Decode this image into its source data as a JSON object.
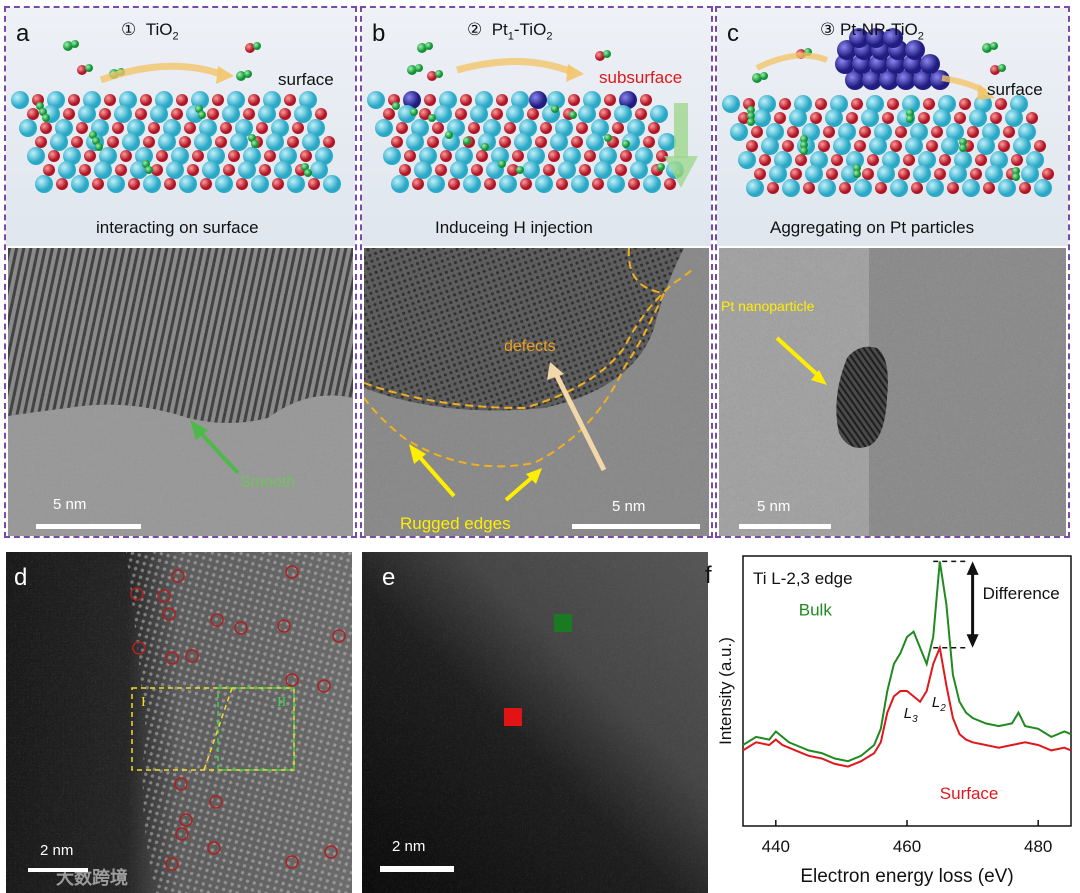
{
  "panels": {
    "a": {
      "letter": "a",
      "title_num": "①",
      "title": "TiO",
      "title_sub": "2",
      "site_label": "surface",
      "caption": "interacting on surface",
      "annotation": "Smooth",
      "scale": "5 nm"
    },
    "b": {
      "letter": "b",
      "title_num": "②",
      "title_pre": "Pt",
      "title_pre_sub": "1",
      "title_post": "-TiO",
      "title_sub": "2",
      "site_label": "subsurface",
      "caption": "Induceing H injection",
      "annotation_defects": "defects",
      "annotation_edges": "Rugged edges",
      "scale": "5 nm"
    },
    "c": {
      "letter": "c",
      "title_num": "③",
      "title": "Pt-NP-TiO",
      "title_sub": "2",
      "site_label": "surface",
      "caption": "Aggregating on Pt particles",
      "annotation": "Pt nanoparticle",
      "scale": "5 nm"
    },
    "d": {
      "letter": "d",
      "region_1": "I",
      "region_2": "II",
      "scale": "2 nm",
      "watermark": "大数跨境"
    },
    "e": {
      "letter": "e",
      "scale": "2 nm"
    },
    "f": {
      "letter": "f"
    }
  },
  "colors": {
    "border": "#7a4aa8",
    "ti": "#3fc3df",
    "o": "#d8323f",
    "h": "#26b34a",
    "pt": "#3a35a8",
    "bulk": "#1f8a1f",
    "surface": "#e0181e",
    "yellow": "#ffee00",
    "orange": "#f0a020"
  },
  "chart_data": {
    "type": "line",
    "title": "Ti L-2,3 edge",
    "xlabel": "Electron energy loss (eV)",
    "ylabel": "Intensity (a.u.)",
    "xlim": [
      435,
      485
    ],
    "xticks": [
      440,
      460,
      480
    ],
    "annotations": [
      "Difference",
      "L3",
      "L2"
    ],
    "series": [
      {
        "name": "Bulk",
        "x": [
          435,
          437,
          439,
          440,
          441,
          442,
          443,
          445,
          447,
          449,
          451,
          453,
          455,
          456,
          457,
          458,
          459,
          460,
          461,
          462,
          463,
          464,
          465,
          466,
          467,
          468,
          469,
          470,
          472,
          474,
          476,
          477,
          478,
          480,
          482,
          484,
          485
        ],
        "values": [
          0.3,
          0.33,
          0.32,
          0.35,
          0.33,
          0.31,
          0.3,
          0.28,
          0.27,
          0.25,
          0.24,
          0.26,
          0.3,
          0.36,
          0.5,
          0.6,
          0.64,
          0.7,
          0.72,
          0.66,
          0.6,
          0.7,
          0.98,
          0.82,
          0.56,
          0.46,
          0.42,
          0.4,
          0.38,
          0.37,
          0.38,
          0.42,
          0.37,
          0.36,
          0.33,
          0.35,
          0.34
        ]
      },
      {
        "name": "Surface",
        "x": [
          435,
          437,
          439,
          440,
          441,
          442,
          443,
          445,
          447,
          449,
          451,
          453,
          455,
          456,
          457,
          458,
          459,
          460,
          461,
          462,
          463,
          464,
          465,
          466,
          467,
          468,
          469,
          470,
          472,
          474,
          476,
          478,
          480,
          482,
          484,
          485
        ],
        "values": [
          0.28,
          0.31,
          0.3,
          0.32,
          0.3,
          0.29,
          0.28,
          0.26,
          0.25,
          0.23,
          0.22,
          0.24,
          0.27,
          0.31,
          0.42,
          0.48,
          0.5,
          0.5,
          0.48,
          0.46,
          0.5,
          0.6,
          0.66,
          0.52,
          0.4,
          0.34,
          0.32,
          0.31,
          0.3,
          0.29,
          0.3,
          0.31,
          0.3,
          0.28,
          0.29,
          0.28
        ]
      }
    ]
  }
}
